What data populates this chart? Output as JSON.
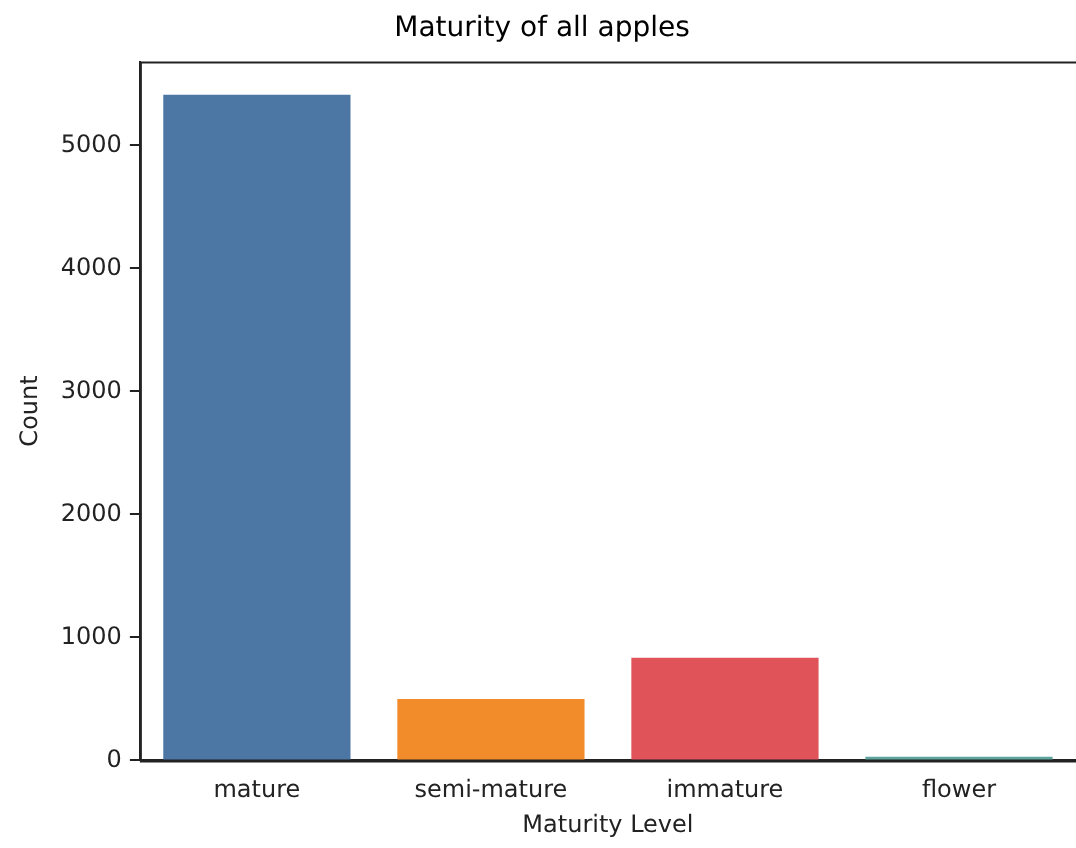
{
  "chart_data": {
    "type": "bar",
    "title": "Maturity of all apples",
    "xlabel": "Maturity Level",
    "ylabel": "Count",
    "categories": [
      "mature",
      "semi-mature",
      "immature",
      "flower"
    ],
    "values": [
      5410,
      500,
      834,
      30
    ],
    "colors": [
      "#4c76a4",
      "#f28c2b",
      "#e05358",
      "#5ca49c"
    ],
    "ylim": [
      0,
      5680
    ],
    "yticks": [
      0,
      1000,
      2000,
      3000,
      4000,
      5000
    ],
    "grid": false,
    "legend": false
  }
}
